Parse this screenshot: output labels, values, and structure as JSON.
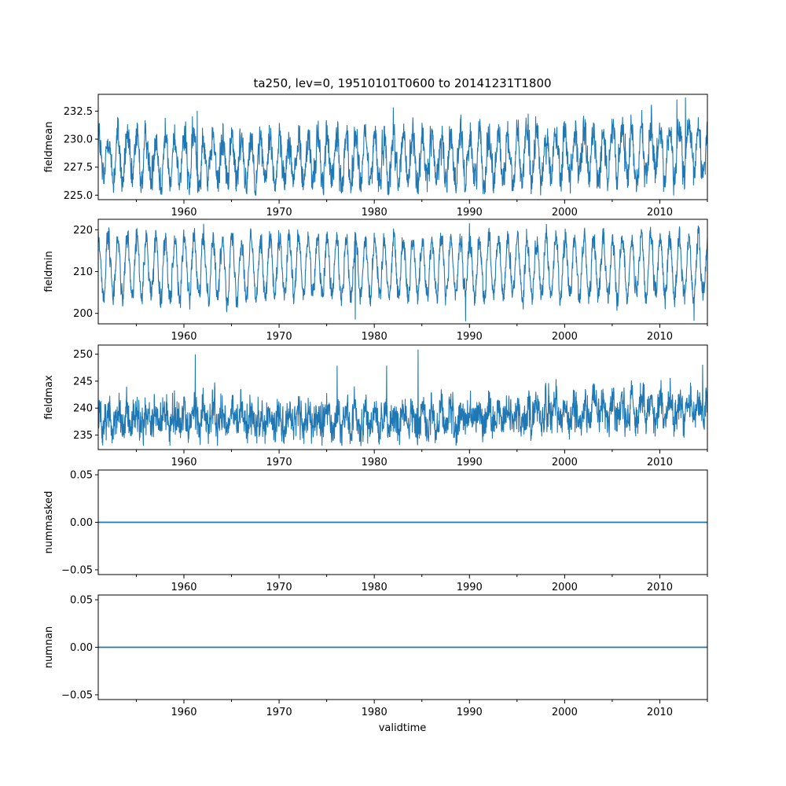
{
  "chart_data": {
    "type": "line",
    "title": "ta250, lev=0, 19510101T0600 to 20141231T1800",
    "xlabel": "validtime",
    "xlim": [
      1951.0,
      2015.0
    ],
    "x_ticks": [
      "1960",
      "1970",
      "1980",
      "1990",
      "2000",
      "2010"
    ],
    "x_tick_values": [
      1960,
      1970,
      1980,
      1990,
      2000,
      2010
    ],
    "x_minor_tick_values": [
      1955,
      1965,
      1975,
      1985,
      1995,
      2005,
      2015
    ],
    "line_color": "#1f77b4",
    "grid": false,
    "panels": [
      {
        "ylabel": "fieldmean",
        "ylim": [
          224.6,
          234.0
        ],
        "y_ticks": [
          "225.0",
          "227.5",
          "230.0",
          "232.5"
        ],
        "y_tick_values": [
          225.0,
          227.5,
          230.0,
          232.5
        ],
        "series": [
          {
            "kind": "seasonal_noise",
            "x_start": 1951.0,
            "x_end": 2015.0,
            "mean": [
              [
                1951,
                228.3
              ],
              [
                1975,
                228.1
              ],
              [
                1995,
                228.4
              ],
              [
                2015,
                229.0
              ]
            ],
            "seasonal_amplitude": 2.1,
            "noise_amplitude": 1.2,
            "peaks": [
              [
                1982.0,
                232.8
              ],
              [
                2012.7,
                233.7
              ],
              [
                2011.8,
                233.5
              ],
              [
                1961.4,
                232.5
              ]
            ],
            "min": 225.0,
            "max": 233.7
          }
        ]
      },
      {
        "ylabel": "fieldmin",
        "ylim": [
          197.5,
          222.5
        ],
        "y_ticks": [
          "200",
          "210",
          "220"
        ],
        "y_tick_values": [
          200,
          210,
          220
        ],
        "series": [
          {
            "kind": "seasonal_noise",
            "x_start": 1951.0,
            "x_end": 2015.0,
            "mean": [
              [
                1951,
                211.0
              ],
              [
                2015,
                211.0
              ]
            ],
            "seasonal_amplitude": 7.0,
            "noise_amplitude": 2.0,
            "peaks": [
              [
                1990.0,
                221.5
              ],
              [
                1989.6,
                198.2
              ],
              [
                2013.6,
                198.3
              ],
              [
                1978.0,
                198.6
              ]
            ],
            "min": 198.2,
            "max": 221.5
          }
        ]
      },
      {
        "ylabel": "fieldmax",
        "ylim": [
          232.3,
          251.7
        ],
        "y_ticks": [
          "235",
          "240",
          "245",
          "250"
        ],
        "y_tick_values": [
          235,
          240,
          245,
          250
        ],
        "series": [
          {
            "kind": "seasonal_noise",
            "x_start": 1951.0,
            "x_end": 2015.0,
            "mean": [
              [
                1951,
                238.2
              ],
              [
                1975,
                237.8
              ],
              [
                1990,
                238.3
              ],
              [
                2000,
                239.2
              ],
              [
                2015,
                239.8
              ]
            ],
            "seasonal_amplitude": 1.6,
            "noise_amplitude": 2.6,
            "peaks": [
              [
                1961.2,
                249.9
              ],
              [
                1984.6,
                250.8
              ],
              [
                1976.1,
                247.8
              ],
              [
                1981.3,
                247.8
              ],
              [
                2014.5,
                248.0
              ]
            ],
            "min": 233.0,
            "max": 250.8
          }
        ]
      },
      {
        "ylabel": "nummasked",
        "ylim": [
          -0.055,
          0.055
        ],
        "y_ticks": [
          "−0.05",
          "0.00",
          "0.05"
        ],
        "y_tick_values": [
          -0.05,
          0.0,
          0.05
        ],
        "series": [
          {
            "kind": "constant",
            "x": [
              1951.0,
              2015.0
            ],
            "values": [
              0,
              0
            ]
          }
        ]
      },
      {
        "ylabel": "numnan",
        "ylim": [
          -0.055,
          0.055
        ],
        "y_ticks": [
          "−0.05",
          "0.00",
          "0.05"
        ],
        "y_tick_values": [
          -0.05,
          0.0,
          0.05
        ],
        "series": [
          {
            "kind": "constant",
            "x": [
              1951.0,
              2015.0
            ],
            "values": [
              0,
              0
            ]
          }
        ]
      }
    ]
  }
}
